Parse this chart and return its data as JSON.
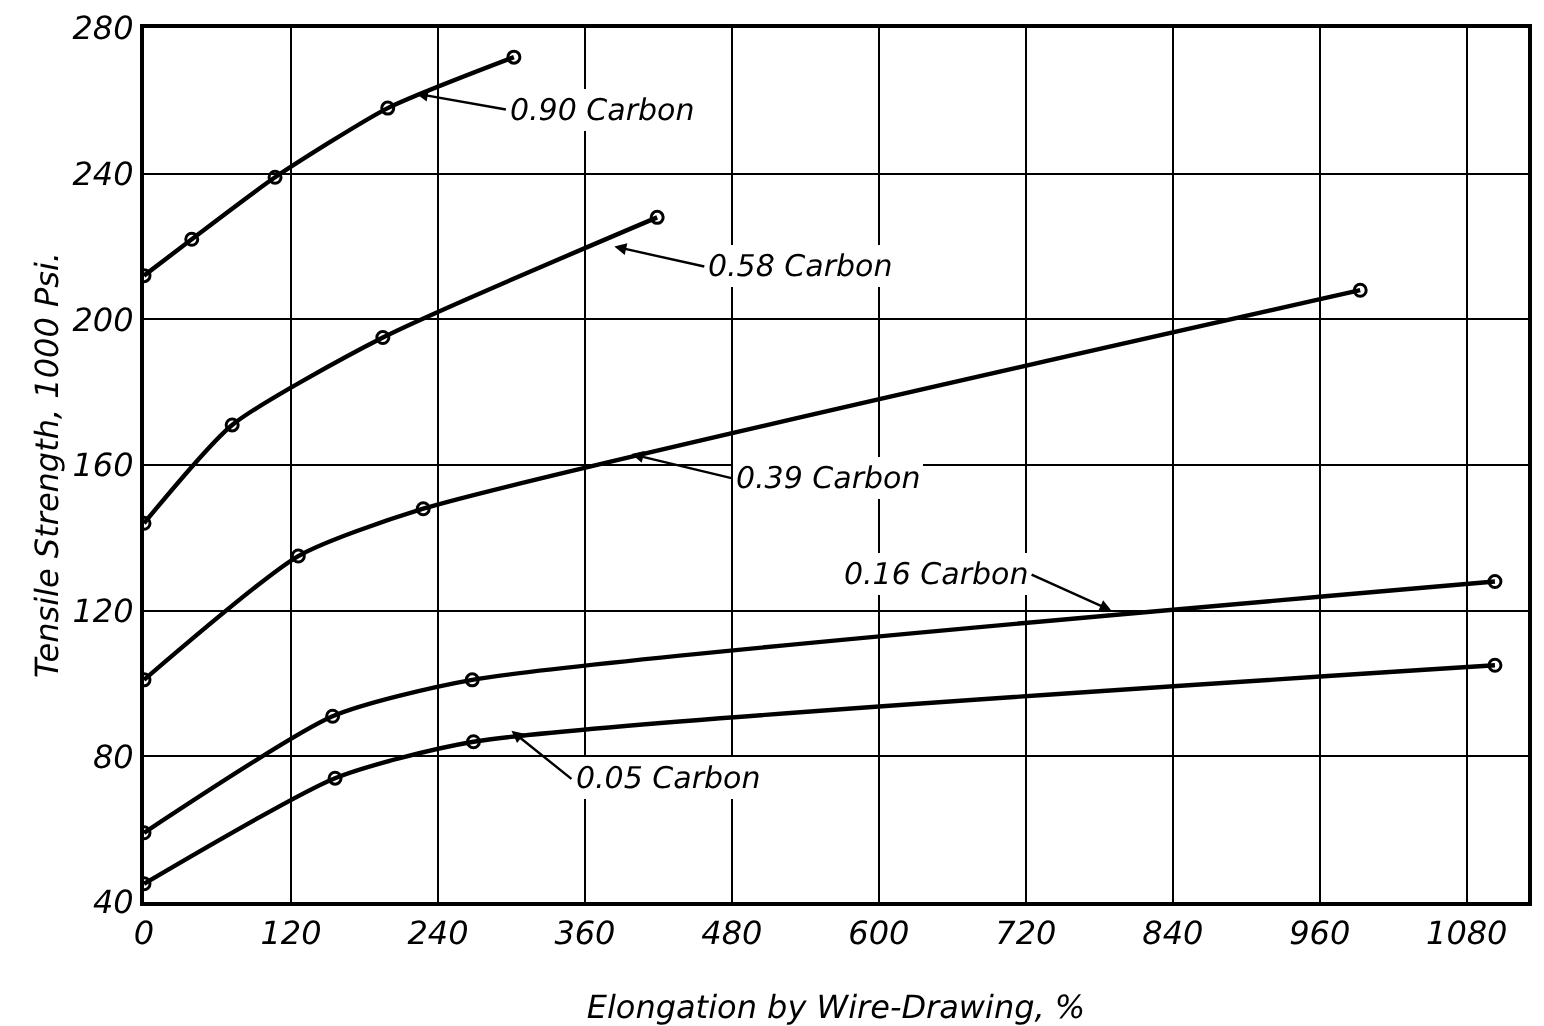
{
  "chart_data": {
    "type": "line",
    "xlabel": "Elongation by Wire-Drawing, %",
    "ylabel": "Tensile Strength, 1000 Psi.",
    "xlim": [
      0,
      1130
    ],
    "xticks": [
      0,
      120,
      240,
      360,
      480,
      600,
      720,
      840,
      960,
      1080
    ],
    "ylim": [
      40,
      280
    ],
    "yticks": [
      40,
      80,
      120,
      160,
      200,
      240,
      280
    ],
    "grid": true,
    "marker": "circle",
    "line_style": "solid",
    "series": [
      {
        "color": "#000000",
        "x": [
          0,
          39,
          107,
          199,
          302
        ],
        "values": [
          212,
          222,
          239,
          258,
          272
        ]
      },
      {
        "color": "#000000",
        "x": [
          0,
          72,
          195,
          419
        ],
        "values": [
          144,
          171,
          195,
          228
        ]
      },
      {
        "color": "#000000",
        "x": [
          0,
          126,
          228,
          993
        ],
        "values": [
          101,
          135,
          148,
          208
        ]
      },
      {
        "color": "#000000",
        "x": [
          0,
          154,
          268,
          1103
        ],
        "values": [
          59,
          91,
          101,
          128
        ]
      },
      {
        "color": "#000000",
        "x": [
          0,
          156,
          269,
          1103
        ],
        "values": [
          45,
          74,
          84,
          105
        ]
      }
    ],
    "annotations": [
      {
        "text": "0.90 Carbon",
        "x": 222,
        "y": 262
      },
      {
        "text": "0.58 Carbon",
        "x": 384,
        "y": 220
      },
      {
        "text": "0.39 Carbon",
        "x": 398,
        "y": 163
      },
      {
        "text": "0.16 Carbon",
        "x": 790,
        "y": 120
      },
      {
        "text": "0.05 Carbon",
        "x": 300,
        "y": 87
      }
    ]
  }
}
